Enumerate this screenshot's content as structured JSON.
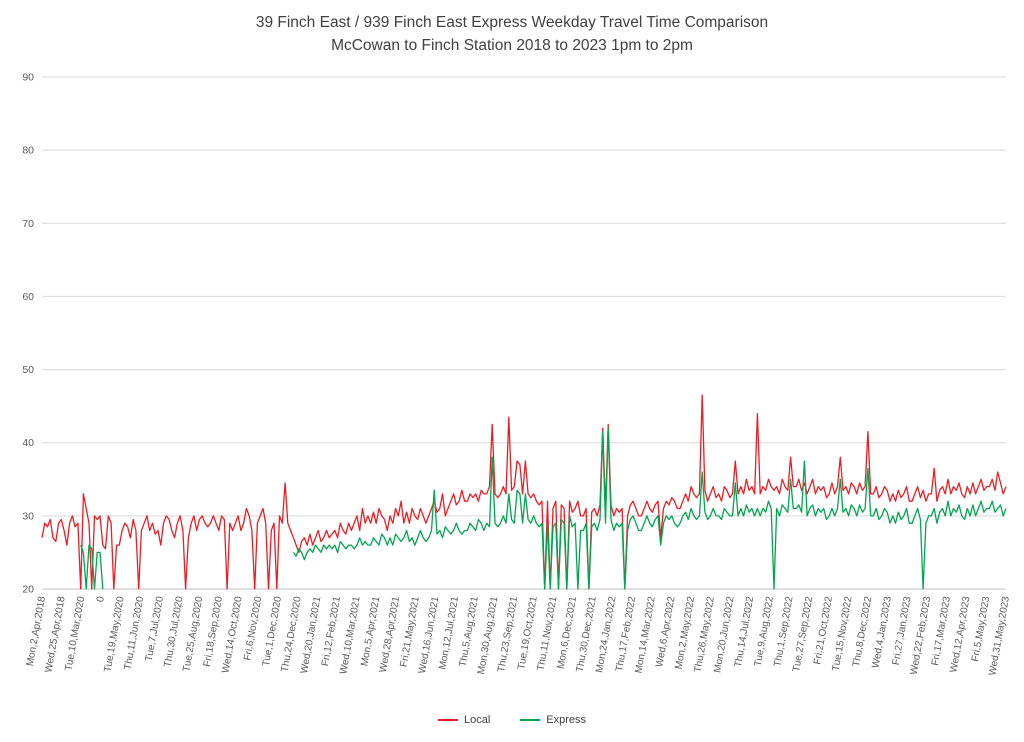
{
  "chart_data": {
    "type": "line",
    "title": "39 Finch East / 939 Finch East Express Weekday Travel Time Comparison",
    "subtitle": "McCowan to Finch Station 2018 to 2023 1pm to 2pm",
    "ylim": [
      20,
      90
    ],
    "y_ticks": [
      20,
      30,
      40,
      50,
      60,
      70,
      80,
      90
    ],
    "grid": "horizontal",
    "legend_position": "bottom",
    "colors": {
      "local": "#ED1C24",
      "express": "#00A550",
      "grid": "#D9D9D9",
      "axis_line": "#BFBFBF",
      "axis_text": "#595959",
      "title_text": "#3F3F3F"
    },
    "x_tick_labels": [
      "Mon,2,Apr,2018",
      "Wed,25,Apr,2018",
      "Tue,10,Mar,2020",
      "0",
      "Tue,19,May,2020",
      "Thu,11,Jun,2020",
      "Tue,7,Jul,2020",
      "Thu,30,Jul,2020",
      "Tue,25,Aug,2020",
      "Fri,18,Sep,2020",
      "Wed,14,Oct,2020",
      "Fri,6,Nov,2020",
      "Tue,1,Dec,2020",
      "Thu,24,Dec,2020",
      "Wed,20,Jan,2021",
      "Fri,12,Feb,2021",
      "Wed,10,Mar,2021",
      "Mon,5,Apr,2021",
      "Wed,28,Apr,2021",
      "Fri,21,May,2021",
      "Wed,16,Jun,2021",
      "Mon,12,Jul,2021",
      "Thu,5,Aug,2021",
      "Mon,30,Aug,2021",
      "Thu,23,Sep,2021",
      "Tue,19,Oct,2021",
      "Thu,11,Nov,2021",
      "Mon,6,Dec,2021",
      "Thu,30,Dec,2021",
      "Mon,24,Jan,2022",
      "Thu,17,Feb,2022",
      "Mon,14,Mar,2022",
      "Wed,6,Apr,2022",
      "Mon,2,May,2022",
      "Thu,26,May,2022",
      "Mon,20,Jun,2022",
      "Thu,14,Jul,2022",
      "Tue,9,Aug,2022",
      "Thu,1,Sep,2022",
      "Tue,27,Sep,2022",
      "Fri,21,Oct,2022",
      "Tue,15,Nov,2022",
      "Thu,8,Dec,2022",
      "Wed,4,Jan,2023",
      "Fri,27,Jan,2023",
      "Wed,22,Feb,2023",
      "Fri,17,Mar,2023",
      "Wed,12,Apr,2023",
      "Fri,5,May,2023",
      "Wed,31,May,2023"
    ],
    "series": [
      {
        "name": "Local",
        "color_key": "local",
        "values": [
          27,
          29,
          28.5,
          29.5,
          27,
          26.5,
          29,
          29.5,
          28,
          26,
          29,
          30,
          28.5,
          29,
          20,
          33,
          31,
          29,
          20,
          30,
          29.5,
          30,
          26,
          25.5,
          30,
          29,
          20,
          26,
          26,
          28,
          29,
          28.5,
          27,
          29.5,
          28,
          20,
          28,
          29,
          30,
          28,
          29,
          27.5,
          28,
          26,
          29,
          30,
          29.5,
          28,
          27,
          29,
          30,
          28,
          20,
          27,
          29,
          30,
          28,
          29.5,
          30,
          29,
          28.5,
          29,
          30,
          29,
          28,
          30,
          29.5,
          20,
          29,
          28,
          29,
          30,
          28,
          29,
          31,
          30,
          28,
          20,
          29,
          30,
          31,
          29,
          20,
          28,
          29,
          20,
          30,
          29,
          34.5,
          29,
          28,
          27,
          26,
          25,
          26.5,
          27,
          26,
          27.5,
          26,
          27,
          28,
          26.5,
          27,
          28,
          27,
          27.5,
          28,
          27,
          29,
          28,
          27.5,
          29,
          28,
          29,
          30,
          28,
          31,
          29,
          30,
          29,
          30.5,
          29,
          31,
          30,
          29.5,
          28,
          30,
          29,
          31,
          30,
          32,
          29,
          30.5,
          29,
          31,
          30,
          29.5,
          31,
          30,
          29,
          30,
          31,
          32,
          30.5,
          31,
          33,
          30,
          31,
          32,
          33,
          31.5,
          32,
          33.5,
          32,
          32,
          33,
          32.5,
          33,
          32,
          33.5,
          33,
          33,
          34,
          42.5,
          33,
          32.5,
          33,
          34,
          33,
          43.5,
          33.5,
          34,
          37.5,
          37,
          33,
          37.5,
          33,
          32.5,
          33,
          32,
          31.5,
          32,
          20,
          32,
          20,
          31,
          32,
          20,
          31.5,
          31,
          20,
          32,
          30.5,
          31,
          32,
          30,
          30,
          31,
          20,
          30.5,
          31,
          30,
          31.5,
          42,
          31,
          42.5,
          31.5,
          30,
          31,
          30.5,
          31,
          20,
          30,
          31.5,
          32,
          31,
          30,
          30,
          31,
          32,
          31,
          30.5,
          31.5,
          32,
          27,
          31,
          32,
          31.5,
          32.5,
          32,
          31,
          31,
          32,
          33,
          32,
          34,
          33,
          32.5,
          33,
          46.5,
          33.5,
          32,
          33,
          34,
          32.5,
          33,
          32,
          34,
          33.5,
          32.5,
          33,
          37.5,
          33,
          34,
          33,
          35,
          33.5,
          34,
          33,
          44,
          33,
          34,
          33.5,
          35,
          34,
          33.5,
          34,
          33,
          35,
          34,
          33.5,
          38,
          34,
          34,
          35,
          33.5,
          34.5,
          33,
          34,
          35,
          33,
          34,
          33.5,
          34,
          32.5,
          33,
          34.5,
          33,
          34,
          38,
          33.5,
          34,
          33,
          34.5,
          34,
          33,
          34.5,
          33.5,
          34,
          41.5,
          33,
          33,
          34,
          32.5,
          33,
          34,
          33.5,
          32,
          33,
          32,
          33.5,
          32.5,
          33,
          34,
          32,
          32,
          33,
          34,
          32.5,
          33.5,
          32,
          33,
          33,
          36.5,
          32,
          33.5,
          34,
          33,
          35,
          33,
          34,
          33.5,
          34.5,
          33,
          32.5,
          34,
          33,
          34.5,
          33,
          34,
          35,
          33.5,
          34,
          34,
          35,
          33.5,
          36,
          34.5,
          33,
          34
        ]
      },
      {
        "name": "Express",
        "color_key": "express",
        "values": [
          null,
          null,
          null,
          null,
          null,
          null,
          null,
          null,
          null,
          null,
          null,
          null,
          null,
          null,
          26,
          25,
          20,
          26,
          25.5,
          20,
          25,
          25,
          20,
          null,
          null,
          null,
          null,
          null,
          null,
          null,
          null,
          null,
          null,
          null,
          null,
          null,
          null,
          null,
          null,
          null,
          null,
          null,
          null,
          null,
          null,
          null,
          null,
          null,
          null,
          null,
          null,
          null,
          null,
          null,
          null,
          null,
          null,
          null,
          null,
          null,
          null,
          null,
          null,
          null,
          null,
          null,
          null,
          null,
          null,
          null,
          null,
          null,
          null,
          null,
          null,
          null,
          null,
          null,
          null,
          null,
          null,
          null,
          null,
          null,
          null,
          null,
          null,
          null,
          null,
          null,
          null,
          25,
          24.5,
          25.5,
          25,
          24,
          25,
          25.5,
          25,
          26,
          25.5,
          25,
          26,
          25.5,
          26,
          25.5,
          26,
          25,
          26.5,
          26,
          25.5,
          26,
          26,
          25.5,
          26,
          27,
          26,
          26.5,
          26,
          26,
          27,
          26.5,
          26,
          27.5,
          27,
          26,
          27,
          26,
          27.5,
          27,
          26.5,
          27,
          28,
          26.5,
          27,
          26,
          27,
          28,
          27,
          26.5,
          27,
          28,
          33.5,
          27.5,
          28,
          27,
          28.5,
          28,
          27.5,
          28,
          29,
          28,
          27.5,
          28,
          28,
          29,
          28.5,
          28,
          29.5,
          29,
          28,
          29,
          28.5,
          38,
          29,
          28.5,
          29,
          30,
          29,
          33,
          29.5,
          29,
          33.5,
          33,
          29,
          33,
          29.5,
          29,
          30,
          29,
          28.5,
          29,
          20,
          29,
          20,
          28.5,
          29,
          20,
          29.5,
          29,
          20,
          30,
          28.5,
          29,
          20,
          28,
          28,
          29,
          20,
          28.5,
          29,
          28,
          29.5,
          41.5,
          29,
          42,
          29.5,
          28,
          29,
          28.5,
          29,
          20,
          28,
          29.5,
          30,
          29,
          28,
          28,
          29,
          30,
          29,
          28.5,
          29.5,
          30,
          26,
          29,
          30,
          29.5,
          30,
          29,
          28.5,
          29,
          30,
          30.5,
          29.5,
          31,
          30,
          29.5,
          30,
          36,
          30.5,
          29.5,
          30,
          31,
          30,
          30,
          29.5,
          31,
          30.5,
          30,
          30,
          34.5,
          30,
          31,
          30,
          31.5,
          30.5,
          31,
          30,
          31,
          30,
          31,
          30.5,
          32,
          31,
          20,
          31,
          30,
          31.5,
          31,
          30.5,
          35,
          31,
          31,
          31.5,
          30.5,
          37.5,
          30,
          31,
          31.5,
          30,
          31,
          30.5,
          31,
          29.5,
          30,
          31,
          30,
          31,
          35,
          30.5,
          31,
          30,
          31.5,
          31,
          30,
          31.5,
          30.5,
          31,
          36.5,
          30,
          30,
          31,
          29.5,
          30,
          31,
          30.5,
          29,
          30,
          29,
          30.5,
          29.5,
          30,
          31,
          29,
          29,
          30,
          31,
          29.5,
          20,
          29,
          30,
          30,
          31,
          29,
          30.5,
          31,
          30,
          32,
          30,
          31,
          30.5,
          31.5,
          30,
          29.5,
          31,
          30,
          31.5,
          30,
          31,
          32,
          30.5,
          31,
          31,
          32,
          30.5,
          31,
          31.5,
          30,
          31
        ]
      }
    ]
  },
  "legend": {
    "local_label": "Local",
    "express_label": "Express"
  }
}
